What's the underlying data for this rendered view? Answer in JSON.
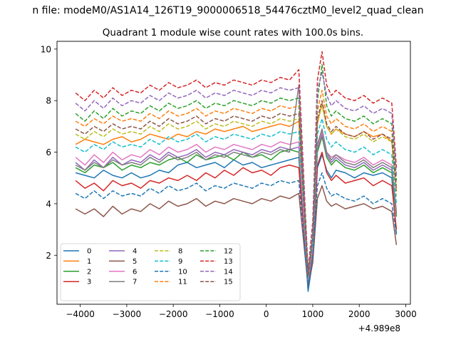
{
  "figure": {
    "suptitle": "n file: modeM0/AS1A14_126T19_9000006518_54476cztM0_level2_quad_clean",
    "offset_label": "+4.989e8"
  },
  "chart_data": {
    "type": "line",
    "title": "Quadrant 1 module wise count rates with 100.0s bins.",
    "xlabel": "",
    "ylabel": "",
    "xlim": [
      -4500,
      3100
    ],
    "ylim": [
      0.1,
      10.3
    ],
    "x_offset": 498900000,
    "grid": false,
    "legend_position": "lower-left",
    "legend_ncol": 4,
    "x_ticks": [
      -4000,
      -3000,
      -2000,
      -1000,
      0,
      1000,
      2000,
      3000
    ],
    "x_tick_labels": [
      "−4000",
      "−3000",
      "−2000",
      "−1000",
      "0",
      "1000",
      "2000",
      "3000"
    ],
    "y_ticks": [
      2,
      4,
      6,
      8,
      10
    ],
    "y_tick_labels": [
      "2",
      "4",
      "6",
      "8",
      "10"
    ],
    "x": [
      -4100,
      -3900,
      -3700,
      -3500,
      -3300,
      -3100,
      -2900,
      -2700,
      -2500,
      -2300,
      -2100,
      -1900,
      -1700,
      -1500,
      -1300,
      -1100,
      -900,
      -700,
      -500,
      -300,
      -100,
      100,
      300,
      500,
      700,
      900,
      1000,
      1100,
      1200,
      1300,
      1400,
      1500,
      1700,
      1900,
      2100,
      2300,
      2500,
      2700,
      2800
    ],
    "series": [
      {
        "name": "0",
        "color": "#1f77b4",
        "dash": "solid",
        "values": [
          5.2,
          5.1,
          5.0,
          5.3,
          5.1,
          5.0,
          5.2,
          5.0,
          5.1,
          5.3,
          5.2,
          5.5,
          5.6,
          5.4,
          5.5,
          5.6,
          5.4,
          5.7,
          5.5,
          5.6,
          5.4,
          5.5,
          5.6,
          5.7,
          5.8,
          0.6,
          1.8,
          5.4,
          5.9,
          5.3,
          5.0,
          5.3,
          5.2,
          5.0,
          5.2,
          5.1,
          5.2,
          5.0,
          2.8
        ]
      },
      {
        "name": "1",
        "color": "#ff7f0e",
        "dash": "solid",
        "values": [
          6.3,
          6.5,
          6.4,
          6.3,
          6.5,
          6.6,
          6.4,
          6.5,
          6.7,
          6.6,
          6.5,
          6.7,
          6.6,
          6.8,
          6.7,
          6.9,
          6.8,
          6.9,
          7.0,
          6.8,
          6.9,
          7.0,
          7.1,
          7.0,
          7.2,
          1.0,
          2.4,
          7.1,
          7.9,
          7.0,
          6.7,
          6.9,
          6.7,
          6.6,
          6.8,
          6.6,
          6.7,
          6.4,
          4.5
        ]
      },
      {
        "name": "2",
        "color": "#2ca02c",
        "dash": "solid",
        "values": [
          5.4,
          5.2,
          5.5,
          5.4,
          5.6,
          5.3,
          5.5,
          5.4,
          5.6,
          5.5,
          5.7,
          5.8,
          5.6,
          5.9,
          5.7,
          5.8,
          5.9,
          5.7,
          6.0,
          5.8,
          5.9,
          5.7,
          6.0,
          6.1,
          6.0,
          0.8,
          2.2,
          6.0,
          6.6,
          5.8,
          5.5,
          5.7,
          5.4,
          5.3,
          5.5,
          5.2,
          5.4,
          5.2,
          3.5
        ]
      },
      {
        "name": "3",
        "color": "#d62728",
        "dash": "solid",
        "values": [
          4.9,
          4.6,
          4.8,
          4.5,
          4.9,
          4.7,
          4.8,
          4.6,
          4.9,
          4.8,
          5.0,
          4.9,
          5.1,
          4.9,
          5.2,
          5.0,
          5.3,
          5.1,
          5.4,
          5.2,
          5.3,
          5.1,
          5.4,
          5.5,
          5.4,
          0.9,
          2.1,
          5.5,
          6.0,
          5.2,
          4.9,
          5.1,
          4.8,
          4.9,
          5.0,
          4.7,
          4.9,
          4.7,
          3.0
        ]
      },
      {
        "name": "4",
        "color": "#9467bd",
        "dash": "solid",
        "values": [
          5.6,
          5.3,
          5.7,
          5.4,
          5.8,
          5.5,
          5.7,
          5.6,
          5.9,
          5.7,
          6.0,
          5.8,
          5.9,
          6.1,
          5.8,
          6.0,
          5.9,
          6.1,
          6.0,
          5.9,
          6.1,
          6.0,
          6.2,
          6.1,
          6.2,
          1.0,
          2.3,
          6.1,
          6.7,
          5.9,
          5.6,
          5.8,
          5.5,
          5.4,
          5.6,
          5.3,
          5.5,
          5.3,
          3.6
        ]
      },
      {
        "name": "5",
        "color": "#8c564b",
        "dash": "solid",
        "values": [
          3.8,
          3.6,
          3.8,
          3.5,
          3.9,
          3.6,
          3.8,
          3.7,
          4.0,
          3.8,
          4.1,
          3.9,
          4.0,
          4.2,
          3.9,
          4.1,
          4.0,
          4.2,
          4.1,
          4.0,
          4.2,
          4.1,
          4.3,
          4.2,
          4.4,
          0.8,
          1.7,
          4.2,
          4.7,
          4.1,
          3.9,
          4.0,
          3.8,
          3.9,
          4.0,
          3.8,
          3.9,
          3.7,
          2.4
        ]
      },
      {
        "name": "6",
        "color": "#e377c2",
        "dash": "solid",
        "values": [
          5.8,
          5.5,
          5.9,
          5.6,
          6.0,
          5.7,
          5.9,
          5.8,
          6.1,
          5.9,
          6.2,
          6.0,
          6.1,
          6.3,
          6.0,
          6.2,
          6.1,
          6.3,
          6.2,
          6.1,
          6.3,
          6.2,
          6.4,
          6.3,
          6.4,
          1.0,
          2.3,
          6.2,
          6.8,
          6.0,
          5.8,
          5.9,
          5.7,
          5.6,
          5.8,
          5.5,
          5.7,
          5.5,
          3.7
        ]
      },
      {
        "name": "7",
        "color": "#7f7f7f",
        "dash": "solid",
        "values": [
          5.5,
          5.3,
          5.6,
          5.4,
          5.7,
          5.5,
          5.6,
          5.5,
          5.8,
          5.6,
          5.9,
          5.7,
          5.8,
          6.0,
          5.7,
          5.9,
          5.8,
          6.0,
          5.9,
          5.8,
          6.0,
          5.9,
          6.1,
          6.0,
          8.6,
          1.1,
          2.5,
          6.3,
          6.9,
          6.0,
          5.7,
          5.9,
          5.6,
          5.5,
          5.7,
          5.4,
          5.6,
          5.4,
          3.6
        ]
      },
      {
        "name": "8",
        "color": "#bcbd22",
        "dash": "dashed",
        "values": [
          6.7,
          6.5,
          6.8,
          6.6,
          6.9,
          6.7,
          6.8,
          6.7,
          7.0,
          6.8,
          7.1,
          6.9,
          7.0,
          7.2,
          6.9,
          7.1,
          7.0,
          7.2,
          7.1,
          7.0,
          7.2,
          7.1,
          7.3,
          7.2,
          7.3,
          1.2,
          2.6,
          7.2,
          7.8,
          7.0,
          6.7,
          6.9,
          6.6,
          6.5,
          6.7,
          6.4,
          6.6,
          6.4,
          4.3
        ]
      },
      {
        "name": "9",
        "color": "#17becf",
        "dash": "dashed",
        "values": [
          6.2,
          6.0,
          6.3,
          6.1,
          6.4,
          6.2,
          6.3,
          6.2,
          6.5,
          6.3,
          6.6,
          6.4,
          6.5,
          6.7,
          6.4,
          6.6,
          6.5,
          6.7,
          6.6,
          6.5,
          6.7,
          6.6,
          6.8,
          6.7,
          6.8,
          1.1,
          2.5,
          6.7,
          7.3,
          6.5,
          6.2,
          6.4,
          6.1,
          6.0,
          6.2,
          5.9,
          6.1,
          5.9,
          4.0
        ]
      },
      {
        "name": "10",
        "color": "#1f77b4",
        "dash": "dashed",
        "values": [
          4.4,
          4.2,
          4.5,
          4.2,
          4.5,
          4.3,
          4.4,
          4.3,
          4.6,
          4.4,
          4.7,
          4.5,
          4.6,
          4.8,
          4.5,
          4.7,
          4.6,
          4.8,
          4.7,
          4.6,
          4.8,
          4.7,
          4.9,
          4.8,
          4.9,
          0.8,
          1.9,
          4.7,
          5.2,
          4.6,
          4.3,
          4.4,
          4.2,
          4.1,
          4.3,
          4.0,
          4.2,
          4.0,
          2.8
        ]
      },
      {
        "name": "11",
        "color": "#ff7f0e",
        "dash": "dashed",
        "values": [
          7.2,
          7.0,
          7.3,
          7.1,
          7.4,
          7.2,
          7.3,
          7.2,
          7.5,
          7.3,
          7.6,
          7.4,
          7.5,
          7.7,
          7.4,
          7.6,
          7.5,
          7.7,
          7.6,
          7.5,
          7.7,
          7.6,
          7.8,
          7.7,
          7.8,
          1.2,
          2.8,
          7.6,
          8.4,
          7.4,
          7.1,
          7.3,
          7.0,
          6.9,
          7.1,
          6.8,
          7.0,
          6.8,
          4.7
        ]
      },
      {
        "name": "12",
        "color": "#2ca02c",
        "dash": "dashed",
        "values": [
          7.5,
          7.2,
          7.6,
          7.3,
          7.7,
          7.4,
          7.6,
          7.5,
          7.8,
          7.6,
          7.9,
          7.7,
          7.8,
          8.0,
          7.7,
          7.9,
          7.8,
          8.0,
          7.9,
          7.8,
          8.0,
          7.9,
          8.1,
          8.0,
          8.1,
          1.3,
          3.0,
          8.0,
          9.4,
          7.8,
          7.4,
          7.6,
          7.3,
          7.2,
          7.4,
          7.1,
          7.3,
          7.1,
          4.9
        ]
      },
      {
        "name": "13",
        "color": "#d62728",
        "dash": "dashed",
        "values": [
          8.3,
          8.0,
          8.4,
          8.1,
          8.5,
          8.2,
          8.4,
          8.3,
          8.6,
          8.4,
          8.7,
          8.5,
          8.6,
          8.8,
          8.5,
          8.7,
          8.6,
          8.8,
          8.7,
          8.6,
          8.8,
          8.7,
          8.9,
          8.8,
          9.2,
          1.4,
          3.3,
          8.8,
          9.9,
          8.6,
          8.2,
          8.4,
          8.1,
          8.0,
          8.2,
          7.9,
          8.1,
          7.9,
          5.4
        ]
      },
      {
        "name": "14",
        "color": "#9467bd",
        "dash": "dashed",
        "values": [
          7.9,
          7.6,
          8.0,
          7.7,
          8.1,
          7.8,
          8.0,
          7.9,
          8.2,
          8.0,
          8.3,
          8.1,
          8.2,
          8.4,
          8.1,
          8.3,
          8.2,
          8.4,
          8.3,
          8.2,
          8.4,
          8.3,
          8.5,
          8.4,
          8.5,
          1.3,
          3.1,
          8.4,
          9.1,
          8.2,
          7.8,
          8.0,
          7.7,
          7.6,
          7.8,
          7.5,
          7.7,
          7.5,
          5.1
        ]
      },
      {
        "name": "15",
        "color": "#8c564b",
        "dash": "dashed",
        "values": [
          6.9,
          6.7,
          7.0,
          6.8,
          7.1,
          6.9,
          7.0,
          6.9,
          7.2,
          7.0,
          7.3,
          7.1,
          7.2,
          7.4,
          7.1,
          7.3,
          7.2,
          7.4,
          7.3,
          7.2,
          7.4,
          7.3,
          7.5,
          7.4,
          7.5,
          1.2,
          2.7,
          7.3,
          8.0,
          7.1,
          6.8,
          7.0,
          6.7,
          6.6,
          6.8,
          6.5,
          6.7,
          6.5,
          4.5
        ]
      }
    ]
  }
}
